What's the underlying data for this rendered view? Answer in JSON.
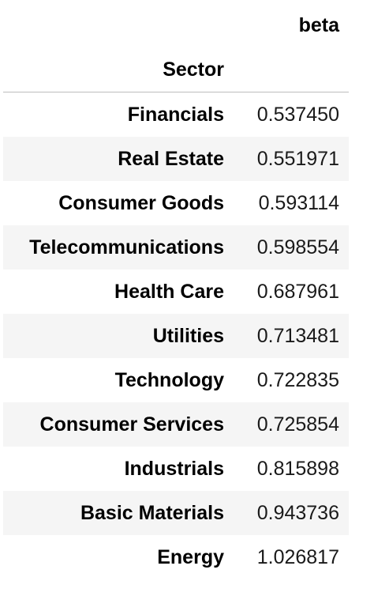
{
  "table": {
    "column_header": "beta",
    "index_name": "Sector",
    "rows": [
      {
        "sector": "Financials",
        "beta": "0.537450"
      },
      {
        "sector": "Real Estate",
        "beta": "0.551971"
      },
      {
        "sector": "Consumer Goods",
        "beta": "0.593114"
      },
      {
        "sector": "Telecommunications",
        "beta": "0.598554"
      },
      {
        "sector": "Health Care",
        "beta": "0.687961"
      },
      {
        "sector": "Utilities",
        "beta": "0.713481"
      },
      {
        "sector": "Technology",
        "beta": "0.722835"
      },
      {
        "sector": "Consumer Services",
        "beta": "0.725854"
      },
      {
        "sector": "Industrials",
        "beta": "0.815898"
      },
      {
        "sector": "Basic Materials",
        "beta": "0.943736"
      },
      {
        "sector": "Energy",
        "beta": "1.026817"
      }
    ]
  }
}
